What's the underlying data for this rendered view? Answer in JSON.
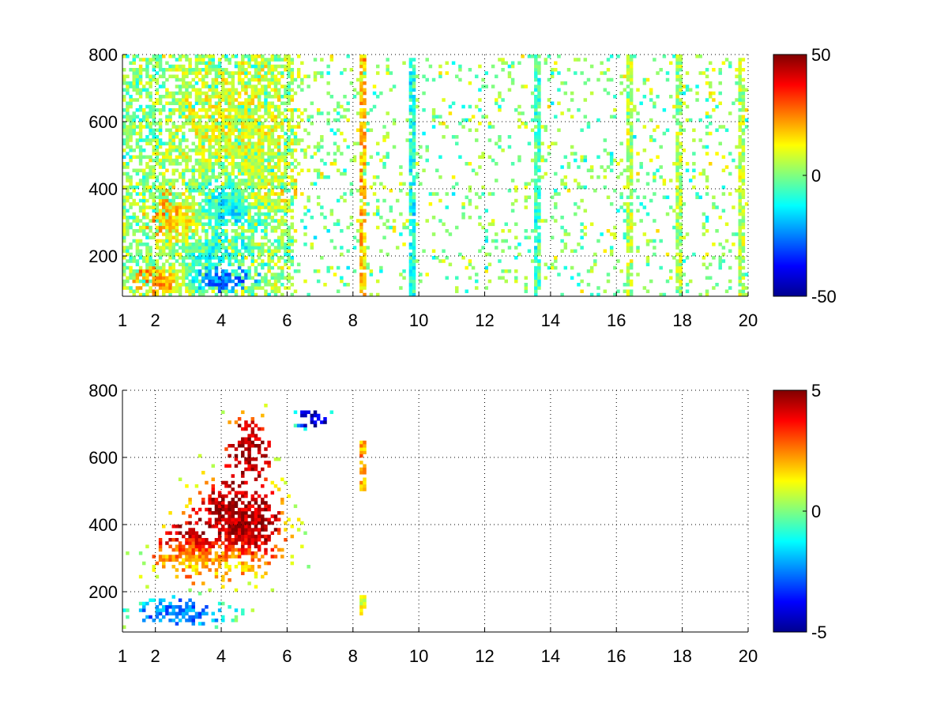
{
  "chart_data": [
    {
      "type": "heatmap",
      "title": "",
      "xlabel": "",
      "ylabel": "",
      "x_ticks": [
        1,
        2,
        4,
        6,
        8,
        10,
        12,
        14,
        16,
        18,
        20
      ],
      "y_ticks": [
        200,
        400,
        600,
        800
      ],
      "xlim": [
        1,
        20
      ],
      "ylim": [
        80,
        800
      ],
      "x_scale": "linear",
      "grid": true,
      "colormap": "jet",
      "clim": [
        -50,
        50
      ],
      "colorbar_ticks": [
        -50,
        0,
        50
      ],
      "colorbar_position": "right",
      "features": [
        {
          "x": 2.3,
          "y": 130,
          "sx": 0.6,
          "sy": 30,
          "v": 25,
          "density": 0.9
        },
        {
          "x": 3.8,
          "y": 135,
          "sx": 0.7,
          "sy": 25,
          "v": -30,
          "density": 0.85
        },
        {
          "x": 2.8,
          "y": 310,
          "sx": 0.6,
          "sy": 60,
          "v": 32,
          "density": 0.85
        },
        {
          "x": 4.2,
          "y": 360,
          "sx": 0.9,
          "sy": 55,
          "v": -32,
          "density": 0.9
        },
        {
          "x": 5.2,
          "y": 380,
          "sx": 0.6,
          "sy": 35,
          "v": 28,
          "density": 0.8
        },
        {
          "x": 4.5,
          "y": 560,
          "sx": 1.2,
          "sy": 160,
          "v": 10,
          "density": 0.7
        },
        {
          "x": 3.5,
          "y": 220,
          "sx": 0.8,
          "sy": 50,
          "v": -15,
          "density": 0.7
        }
      ],
      "vertical_streaks": [
        {
          "x": 8.3,
          "v": 18
        },
        {
          "x": 9.8,
          "v": -10
        },
        {
          "x": 13.6,
          "v": -6
        },
        {
          "x": 16.4,
          "v": 5
        },
        {
          "x": 17.9,
          "v": 4
        },
        {
          "x": 19.8,
          "v": 5
        }
      ]
    },
    {
      "type": "heatmap",
      "title": "",
      "xlabel": "",
      "ylabel": "",
      "x_ticks": [
        1,
        2,
        4,
        6,
        8,
        10,
        12,
        14,
        16,
        18,
        20
      ],
      "y_ticks": [
        200,
        400,
        600,
        800
      ],
      "xlim": [
        1,
        20
      ],
      "ylim": [
        80,
        800
      ],
      "x_scale": "linear",
      "grid": true,
      "colormap": "jet",
      "clim": [
        -5,
        5
      ],
      "colorbar_ticks": [
        -5,
        0,
        5
      ],
      "colorbar_position": "right",
      "features": [
        {
          "x": 4.5,
          "y": 400,
          "sx": 0.8,
          "sy": 80,
          "v": 4.5,
          "density": 0.9
        },
        {
          "x": 3.2,
          "y": 320,
          "sx": 0.7,
          "sy": 50,
          "v": 4.0,
          "density": 0.85
        },
        {
          "x": 4.8,
          "y": 620,
          "sx": 0.4,
          "sy": 60,
          "v": 4.5,
          "density": 0.6
        },
        {
          "x": 3.6,
          "y": 290,
          "sx": 0.9,
          "sy": 30,
          "v": 0.0,
          "density": 0.6
        },
        {
          "x": 2.8,
          "y": 140,
          "sx": 0.8,
          "sy": 25,
          "v": -2.5,
          "density": 0.7
        },
        {
          "x": 6.8,
          "y": 720,
          "sx": 0.3,
          "sy": 20,
          "v": -4.5,
          "density": 0.6
        }
      ],
      "vertical_streaks": [
        {
          "x": 8.3,
          "v": 2.0,
          "ymin": 490,
          "ymax": 650
        },
        {
          "x": 8.3,
          "v": 1.0,
          "ymin": 130,
          "ymax": 190
        }
      ]
    }
  ]
}
